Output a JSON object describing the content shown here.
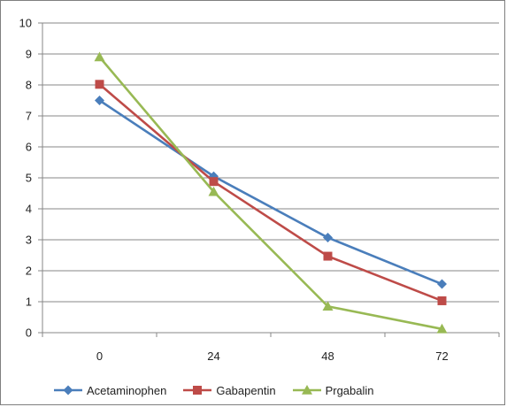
{
  "chart_data": {
    "type": "line",
    "title": "",
    "xlabel": "",
    "ylabel": "",
    "x": [
      0,
      24,
      48,
      72
    ],
    "x_tick_labels": [
      "0",
      "24",
      "48",
      "72"
    ],
    "ylim": [
      0,
      10
    ],
    "y_tick_labels": [
      "0",
      "1",
      "2",
      "3",
      "4",
      "5",
      "6",
      "7",
      "8",
      "9",
      "10"
    ],
    "grid": true,
    "legend_position": "bottom",
    "series": [
      {
        "name": "Acetaminophen",
        "values": [
          7.5,
          5.05,
          3.07,
          1.57
        ],
        "color": "#4a7ebb",
        "marker": "diamond"
      },
      {
        "name": "Gabapentin",
        "values": [
          8.02,
          4.88,
          2.47,
          1.03
        ],
        "color": "#be4b48",
        "marker": "square"
      },
      {
        "name": "Prgabalin",
        "values": [
          8.9,
          4.55,
          0.85,
          0.12
        ],
        "color": "#98b954",
        "marker": "triangle"
      }
    ]
  }
}
